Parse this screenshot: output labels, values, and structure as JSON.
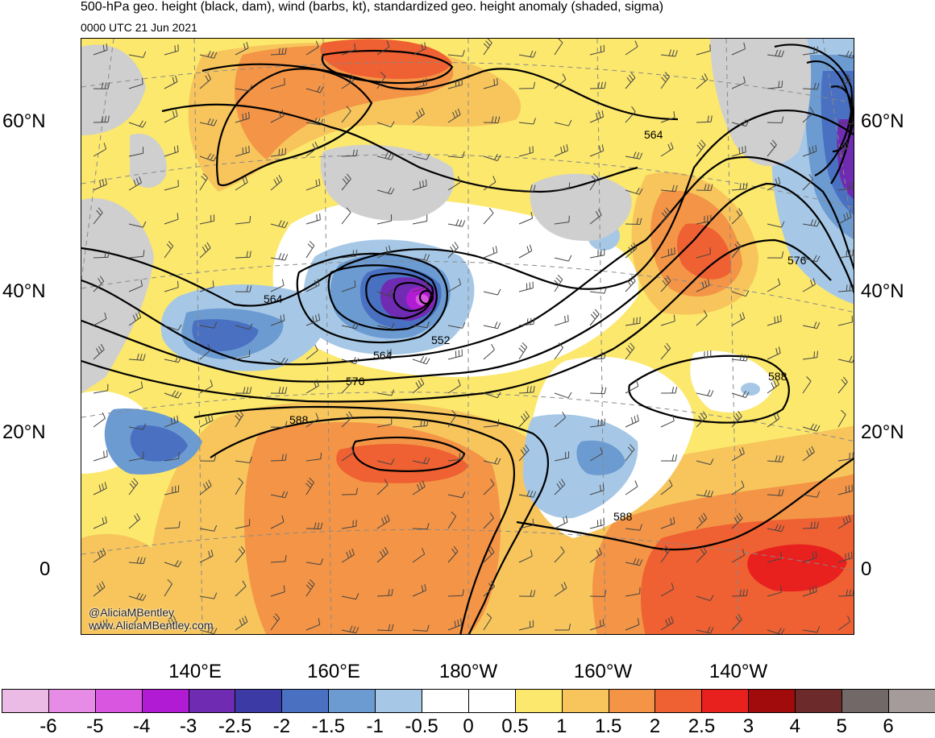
{
  "header": {
    "title": "500-hPa geo. height (black, dam), wind (barbs, kt), standardized geo. height anomaly (shaded, sigma)",
    "valid_time": "0000 UTC 21 Jun 2021"
  },
  "map": {
    "lat_labels_left": [
      "60°N",
      "40°N",
      "20°N",
      "0"
    ],
    "lat_labels_right": [
      "60°N",
      "40°N",
      "20°N",
      "0"
    ],
    "lon_labels": [
      "140°E",
      "160°E",
      "180°W",
      "160°W",
      "140°W"
    ],
    "contour_labels": [
      "564",
      "552",
      "564",
      "576",
      "588",
      "564",
      "576",
      "588",
      "588"
    ],
    "credit_handle": "@AliciaMBentley",
    "credit_url": "www.AliciaMBentley.com"
  },
  "colorbar": {
    "ticks": [
      "-6",
      "-5",
      "-4",
      "-3",
      "-2.5",
      "-2",
      "-1.5",
      "-1",
      "-0.5",
      "0",
      "0.5",
      "1",
      "1.5",
      "2",
      "2.5",
      "3",
      "4",
      "5",
      "6"
    ],
    "colors": [
      "#ebbbe6",
      "#e68be6",
      "#d957e0",
      "#b21bd4",
      "#6f2cb2",
      "#3c3aa4",
      "#4a70c2",
      "#6c9bd2",
      "#a6c8e6",
      "#ffffff",
      "#ffffff",
      "#fce86c",
      "#f7c55c",
      "#f39446",
      "#ef6032",
      "#e8211f",
      "#a20b0b",
      "#6c2a2a",
      "#716867",
      "#a49b9a"
    ]
  }
}
